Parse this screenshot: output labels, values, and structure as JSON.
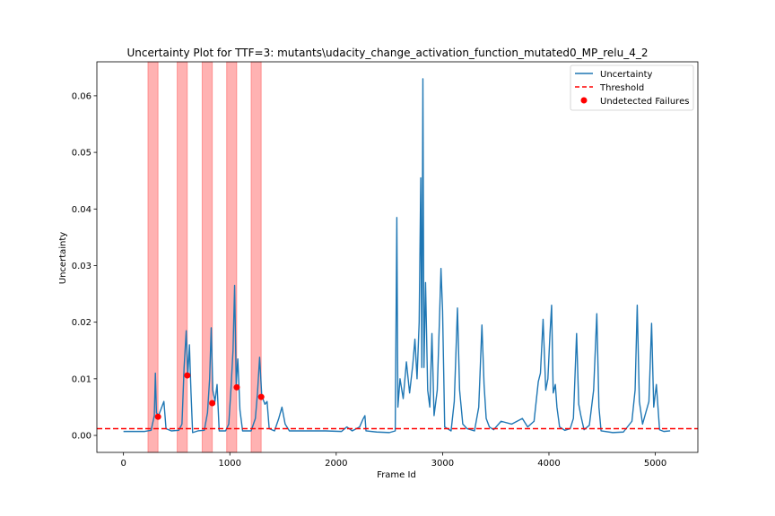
{
  "chart_data": {
    "type": "line",
    "title": "Uncertainty Plot for TTF=3: mutants\\udacity_change_activation_function_mutated0_MP_relu_4_2",
    "xlabel": "Frame Id",
    "ylabel": "Uncertainty",
    "xlim": [
      -250,
      5400
    ],
    "ylim": [
      -0.003,
      0.066
    ],
    "xticks": [
      0,
      1000,
      2000,
      3000,
      4000,
      5000
    ],
    "yticks": [
      0.0,
      0.01,
      0.02,
      0.03,
      0.04,
      0.05,
      0.06
    ],
    "xtick_labels": [
      "0",
      "1000",
      "2000",
      "3000",
      "4000",
      "5000"
    ],
    "ytick_labels": [
      "0.00",
      "0.01",
      "0.02",
      "0.03",
      "0.04",
      "0.05",
      "0.06"
    ],
    "legend": {
      "placement": "top-right",
      "entries": [
        {
          "label": "Uncertainty",
          "color": "#1f77b4",
          "style": "line"
        },
        {
          "label": "Threshold",
          "color": "#ff0000",
          "style": "dashed"
        },
        {
          "label": "Undetected Failures",
          "color": "#ff0000",
          "style": "marker"
        }
      ]
    },
    "threshold": 0.0012,
    "failure_regions": [
      [
        230,
        325
      ],
      [
        505,
        600
      ],
      [
        740,
        835
      ],
      [
        970,
        1065
      ],
      [
        1200,
        1295
      ]
    ],
    "undetected_failures": [
      {
        "x": 325,
        "y": 0.0033
      },
      {
        "x": 600,
        "y": 0.0106
      },
      {
        "x": 835,
        "y": 0.0057
      },
      {
        "x": 1065,
        "y": 0.0085
      },
      {
        "x": 1295,
        "y": 0.0068
      }
    ],
    "series": [
      {
        "name": "Uncertainty",
        "color": "#1f77b4",
        "points": [
          [
            0,
            0.0007
          ],
          [
            200,
            0.0007
          ],
          [
            260,
            0.0009
          ],
          [
            290,
            0.0035
          ],
          [
            300,
            0.011
          ],
          [
            310,
            0.004
          ],
          [
            330,
            0.0035
          ],
          [
            350,
            0.0045
          ],
          [
            380,
            0.006
          ],
          [
            400,
            0.0012
          ],
          [
            450,
            0.0008
          ],
          [
            520,
            0.0009
          ],
          [
            550,
            0.002
          ],
          [
            570,
            0.012
          ],
          [
            590,
            0.0185
          ],
          [
            605,
            0.0105
          ],
          [
            620,
            0.016
          ],
          [
            635,
            0.0075
          ],
          [
            650,
            0.0005
          ],
          [
            700,
            0.0008
          ],
          [
            760,
            0.0009
          ],
          [
            790,
            0.004
          ],
          [
            810,
            0.01
          ],
          [
            825,
            0.019
          ],
          [
            840,
            0.008
          ],
          [
            860,
            0.006
          ],
          [
            880,
            0.009
          ],
          [
            900,
            0.0008
          ],
          [
            960,
            0.0008
          ],
          [
            990,
            0.002
          ],
          [
            1010,
            0.008
          ],
          [
            1030,
            0.015
          ],
          [
            1045,
            0.0265
          ],
          [
            1060,
            0.009
          ],
          [
            1075,
            0.0135
          ],
          [
            1095,
            0.0045
          ],
          [
            1120,
            0.0008
          ],
          [
            1200,
            0.0008
          ],
          [
            1240,
            0.003
          ],
          [
            1260,
            0.0075
          ],
          [
            1280,
            0.0138
          ],
          [
            1300,
            0.007
          ],
          [
            1330,
            0.0055
          ],
          [
            1350,
            0.006
          ],
          [
            1370,
            0.0012
          ],
          [
            1420,
            0.0008
          ],
          [
            1460,
            0.003
          ],
          [
            1490,
            0.005
          ],
          [
            1520,
            0.002
          ],
          [
            1560,
            0.0008
          ],
          [
            1700,
            0.0008
          ],
          [
            1900,
            0.0008
          ],
          [
            2050,
            0.0007
          ],
          [
            2100,
            0.0015
          ],
          [
            2150,
            0.0008
          ],
          [
            2220,
            0.0015
          ],
          [
            2250,
            0.0028
          ],
          [
            2270,
            0.0035
          ],
          [
            2280,
            0.0008
          ],
          [
            2380,
            0.0006
          ],
          [
            2500,
            0.0005
          ],
          [
            2555,
            0.0008
          ],
          [
            2570,
            0.0385
          ],
          [
            2580,
            0.005
          ],
          [
            2600,
            0.01
          ],
          [
            2630,
            0.0065
          ],
          [
            2660,
            0.013
          ],
          [
            2690,
            0.0075
          ],
          [
            2720,
            0.0125
          ],
          [
            2740,
            0.017
          ],
          [
            2760,
            0.01
          ],
          [
            2780,
            0.02
          ],
          [
            2795,
            0.0455
          ],
          [
            2805,
            0.012
          ],
          [
            2815,
            0.063
          ],
          [
            2825,
            0.012
          ],
          [
            2840,
            0.027
          ],
          [
            2860,
            0.008
          ],
          [
            2880,
            0.005
          ],
          [
            2900,
            0.018
          ],
          [
            2920,
            0.0035
          ],
          [
            2950,
            0.008
          ],
          [
            2970,
            0.02
          ],
          [
            2985,
            0.0295
          ],
          [
            3000,
            0.022
          ],
          [
            3020,
            0.0015
          ],
          [
            3080,
            0.0008
          ],
          [
            3110,
            0.006
          ],
          [
            3140,
            0.0225
          ],
          [
            3160,
            0.008
          ],
          [
            3190,
            0.002
          ],
          [
            3230,
            0.0012
          ],
          [
            3300,
            0.0008
          ],
          [
            3340,
            0.005
          ],
          [
            3370,
            0.0195
          ],
          [
            3390,
            0.009
          ],
          [
            3410,
            0.003
          ],
          [
            3440,
            0.0015
          ],
          [
            3480,
            0.001
          ],
          [
            3550,
            0.0025
          ],
          [
            3650,
            0.002
          ],
          [
            3750,
            0.003
          ],
          [
            3800,
            0.0015
          ],
          [
            3860,
            0.0025
          ],
          [
            3900,
            0.0095
          ],
          [
            3920,
            0.011
          ],
          [
            3945,
            0.0205
          ],
          [
            3970,
            0.008
          ],
          [
            3990,
            0.01
          ],
          [
            4010,
            0.018
          ],
          [
            4025,
            0.023
          ],
          [
            4040,
            0.0075
          ],
          [
            4060,
            0.009
          ],
          [
            4075,
            0.005
          ],
          [
            4100,
            0.0015
          ],
          [
            4150,
            0.0009
          ],
          [
            4200,
            0.0012
          ],
          [
            4230,
            0.003
          ],
          [
            4260,
            0.018
          ],
          [
            4280,
            0.0055
          ],
          [
            4300,
            0.0035
          ],
          [
            4330,
            0.001
          ],
          [
            4380,
            0.0018
          ],
          [
            4420,
            0.008
          ],
          [
            4450,
            0.0215
          ],
          [
            4470,
            0.005
          ],
          [
            4490,
            0.0008
          ],
          [
            4600,
            0.0005
          ],
          [
            4700,
            0.0006
          ],
          [
            4780,
            0.0025
          ],
          [
            4810,
            0.008
          ],
          [
            4830,
            0.023
          ],
          [
            4850,
            0.006
          ],
          [
            4880,
            0.002
          ],
          [
            4940,
            0.006
          ],
          [
            4965,
            0.0198
          ],
          [
            4985,
            0.005
          ],
          [
            5010,
            0.009
          ],
          [
            5040,
            0.001
          ],
          [
            5080,
            0.0007
          ],
          [
            5140,
            0.0008
          ]
        ]
      }
    ]
  }
}
